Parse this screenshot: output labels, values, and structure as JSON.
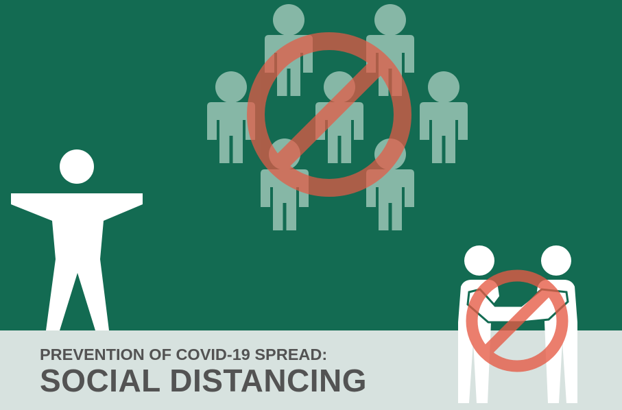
{
  "text": {
    "subtitle": "PREVENTION OF COVID-19 SPREAD:",
    "title": "SOCIAL DISTANCING"
  },
  "icons": {
    "standing_person": "arms-outstretched-person-icon",
    "crowd": "crowd-of-people-icon",
    "crowd_prohibition": "prohibition-sign-icon",
    "handshake_pair": "two-people-shaking-hands-icon",
    "handshake_prohibition": "prohibition-sign-icon"
  },
  "colors": {
    "background_green": "#136b52",
    "floor_gray": "#d7e2df",
    "text_gray": "#535353",
    "figure_white": "#ffffff",
    "crowd_figure": "#86b7a6",
    "prohibition_red": "#e65a45"
  }
}
